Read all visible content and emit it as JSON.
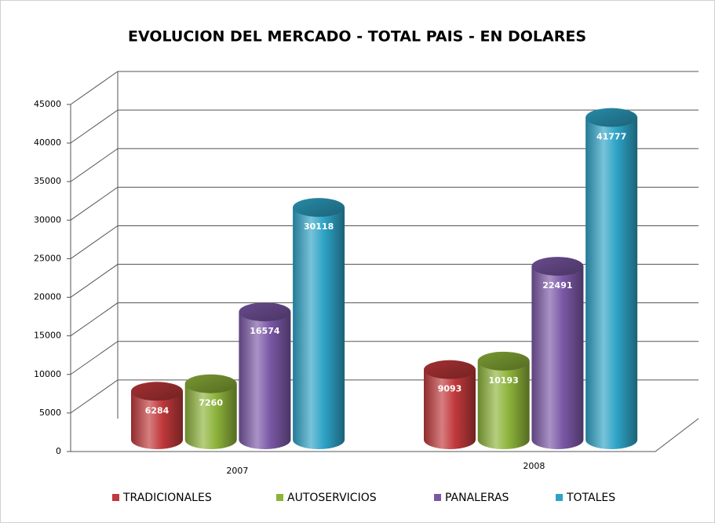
{
  "chart_data": {
    "type": "bar",
    "title": "EVOLUCION DEL MERCADO - TOTAL PAIS - EN DOLARES",
    "categories": [
      "2007",
      "2008"
    ],
    "series": [
      {
        "name": "TRADICIONALES",
        "color": "#c0393b",
        "values": [
          6284,
          9093
        ]
      },
      {
        "name": "AUTOSERVICIOS",
        "color": "#8db33a",
        "values": [
          7260,
          10193
        ]
      },
      {
        "name": "PANALERAS",
        "color": "#7b58a6",
        "values": [
          16574,
          22491
        ]
      },
      {
        "name": "TOTALES",
        "color": "#2ea3c6",
        "values": [
          30118,
          41777
        ]
      }
    ],
    "ylim": [
      0,
      45000
    ],
    "yticks": [
      0,
      5000,
      10000,
      15000,
      20000,
      25000,
      30000,
      35000,
      40000,
      45000
    ],
    "grid": true,
    "legend": "bottom"
  }
}
